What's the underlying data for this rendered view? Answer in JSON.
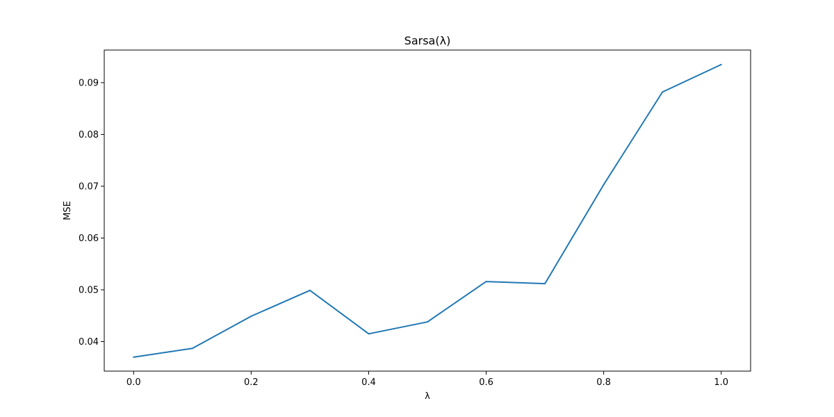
{
  "chart_data": {
    "type": "line",
    "title": "Sarsa(λ)",
    "xlabel": "λ",
    "ylabel": "MSE",
    "x": [
      0.0,
      0.1,
      0.2,
      0.3,
      0.4,
      0.5,
      0.6,
      0.7,
      0.8,
      0.9,
      1.0
    ],
    "series": [
      {
        "values": [
          0.037,
          0.0387,
          0.0449,
          0.0499,
          0.0415,
          0.0438,
          0.0516,
          0.0512,
          0.0703,
          0.0882,
          0.0935
        ]
      }
    ],
    "xlim": [
      -0.05,
      1.05
    ],
    "ylim": [
      0.0343,
      0.0963
    ],
    "xticks": [
      0.0,
      0.2,
      0.4,
      0.6,
      0.8,
      1.0
    ],
    "xtick_labels": [
      "0.0",
      "0.2",
      "0.4",
      "0.6",
      "0.8",
      "1.0"
    ],
    "yticks": [
      0.04,
      0.05,
      0.06,
      0.07,
      0.08,
      0.09
    ],
    "ytick_labels": [
      "0.04",
      "0.05",
      "0.06",
      "0.07",
      "0.08",
      "0.09"
    ],
    "grid": false,
    "line_color": "#1f77b4"
  }
}
